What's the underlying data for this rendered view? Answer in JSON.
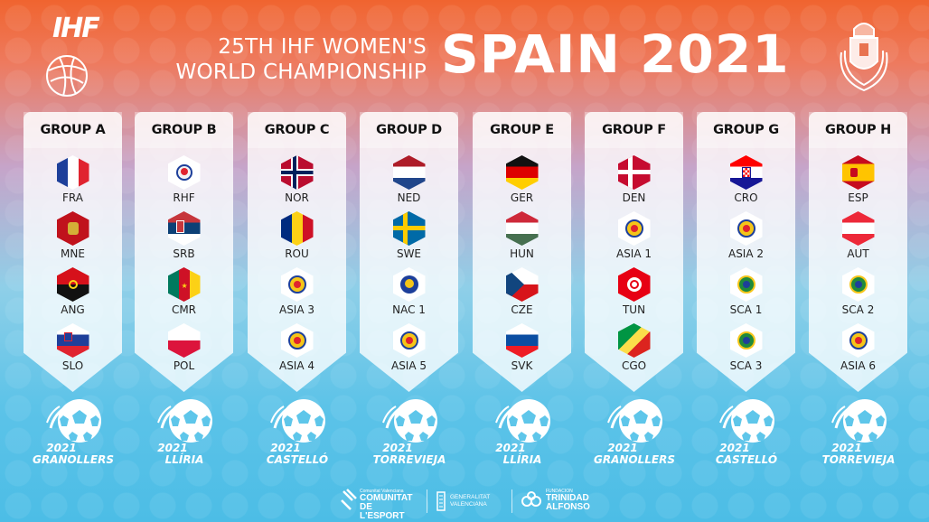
{
  "header": {
    "ihf": "IHF",
    "title_line1": "25TH IHF WOMEN'S",
    "title_line2": "WORLD CHAMPIONSHIP",
    "title_big": "SPAIN 2021"
  },
  "groups": [
    {
      "name": "GROUP A",
      "teams": [
        {
          "code": "FRA",
          "flag": "fra"
        },
        {
          "code": "MNE",
          "flag": "mne"
        },
        {
          "code": "ANG",
          "flag": "ang"
        },
        {
          "code": "SLO",
          "flag": "slo"
        }
      ]
    },
    {
      "name": "GROUP B",
      "teams": [
        {
          "code": "RHF",
          "flag": "rhf"
        },
        {
          "code": "SRB",
          "flag": "srb"
        },
        {
          "code": "CMR",
          "flag": "cmr"
        },
        {
          "code": "POL",
          "flag": "pol"
        }
      ]
    },
    {
      "name": "GROUP C",
      "teams": [
        {
          "code": "NOR",
          "flag": "nor"
        },
        {
          "code": "ROU",
          "flag": "rou"
        },
        {
          "code": "ASIA 3",
          "flag": "asia"
        },
        {
          "code": "ASIA 4",
          "flag": "asia"
        }
      ]
    },
    {
      "name": "GROUP D",
      "teams": [
        {
          "code": "NED",
          "flag": "ned"
        },
        {
          "code": "SWE",
          "flag": "swe"
        },
        {
          "code": "NAC 1",
          "flag": "nac"
        },
        {
          "code": "ASIA 5",
          "flag": "asia"
        }
      ]
    },
    {
      "name": "GROUP E",
      "teams": [
        {
          "code": "GER",
          "flag": "ger"
        },
        {
          "code": "HUN",
          "flag": "hun"
        },
        {
          "code": "CZE",
          "flag": "cze"
        },
        {
          "code": "SVK",
          "flag": "svk"
        }
      ]
    },
    {
      "name": "GROUP F",
      "teams": [
        {
          "code": "DEN",
          "flag": "den"
        },
        {
          "code": "ASIA 1",
          "flag": "asia"
        },
        {
          "code": "TUN",
          "flag": "tun"
        },
        {
          "code": "CGO",
          "flag": "cgo"
        }
      ]
    },
    {
      "name": "GROUP G",
      "teams": [
        {
          "code": "CRO",
          "flag": "cro"
        },
        {
          "code": "ASIA 2",
          "flag": "asia"
        },
        {
          "code": "SCA 1",
          "flag": "sca"
        },
        {
          "code": "SCA 3",
          "flag": "sca"
        }
      ]
    },
    {
      "name": "GROUP H",
      "teams": [
        {
          "code": "ESP",
          "flag": "esp"
        },
        {
          "code": "AUT",
          "flag": "aut"
        },
        {
          "code": "SCA 2",
          "flag": "sca"
        },
        {
          "code": "ASIA 6",
          "flag": "asia"
        }
      ]
    }
  ],
  "venues": [
    {
      "year": "2021",
      "city": "GRANOLLERS"
    },
    {
      "year": "2021",
      "city": "LLÍRIA"
    },
    {
      "year": "2021",
      "city": "CASTELLÓ"
    },
    {
      "year": "2021",
      "city": "TORREVIEJA"
    },
    {
      "year": "2021",
      "city": "LLÍRIA"
    },
    {
      "year": "2021",
      "city": "GRANOLLERS"
    },
    {
      "year": "2021",
      "city": "CASTELLÓ"
    },
    {
      "year": "2021",
      "city": "TORREVIEJA"
    }
  ],
  "footer": {
    "s1_small": "Comunitat Valenciana",
    "s1_big1": "COMUNITAT",
    "s1_big2": "DE L'ESPORT",
    "s2_line1": "GENERALITAT",
    "s2_line2": "VALENCIANA",
    "s3_small": "FUNDACION",
    "s3_big1": "TRINIDAD",
    "s3_big2": "ALFONSO"
  },
  "colors": {
    "white": "#ffffff",
    "text_dark": "#111111"
  }
}
